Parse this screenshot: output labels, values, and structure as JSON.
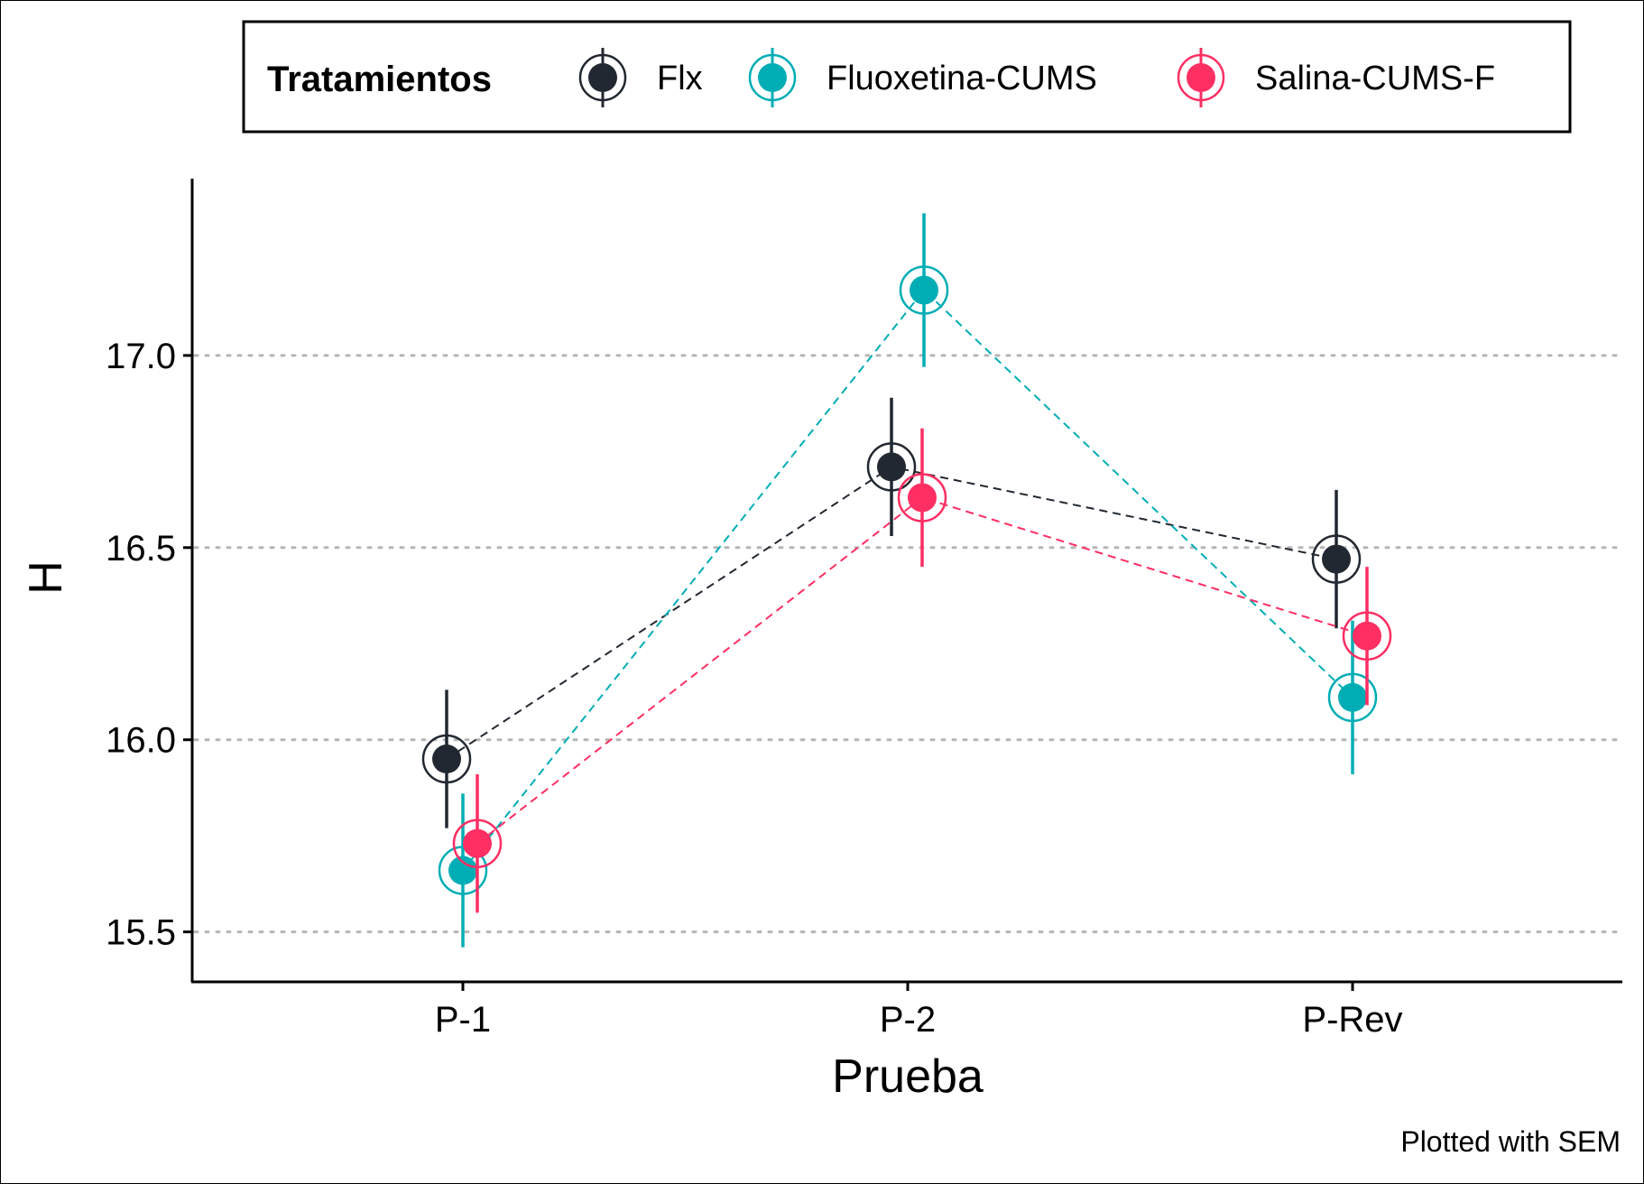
{
  "chart_data": {
    "type": "line",
    "xlabel": "Prueba",
    "ylabel": "H",
    "caption": "Plotted with SEM",
    "categories": [
      "P-1",
      "P-2",
      "P-Rev"
    ],
    "ylim": [
      15.37,
      17.46
    ],
    "yticks": [
      15.5,
      16.0,
      16.5,
      17.0
    ],
    "ytick_labels": [
      "15.5",
      "16.0",
      "16.5",
      "17.0"
    ],
    "grid": "horizontal dotted",
    "legend": {
      "title": "Tratamientos",
      "placement": "top"
    },
    "error_bars": "SEM",
    "series": [
      {
        "name": "Flx",
        "color": "#222831",
        "values": [
          15.95,
          16.71,
          16.47
        ],
        "sem": [
          0.18,
          0.18,
          0.18
        ]
      },
      {
        "name": "Fluoxetina-CUMS",
        "color": "#00ADB5",
        "values": [
          15.66,
          17.17,
          16.11
        ],
        "sem": [
          0.2,
          0.2,
          0.2
        ]
      },
      {
        "name": "Salina-CUMS-F",
        "color": "#FF2E63",
        "values": [
          15.73,
          16.63,
          16.27
        ],
        "sem": [
          0.18,
          0.18,
          0.18
        ]
      }
    ]
  }
}
